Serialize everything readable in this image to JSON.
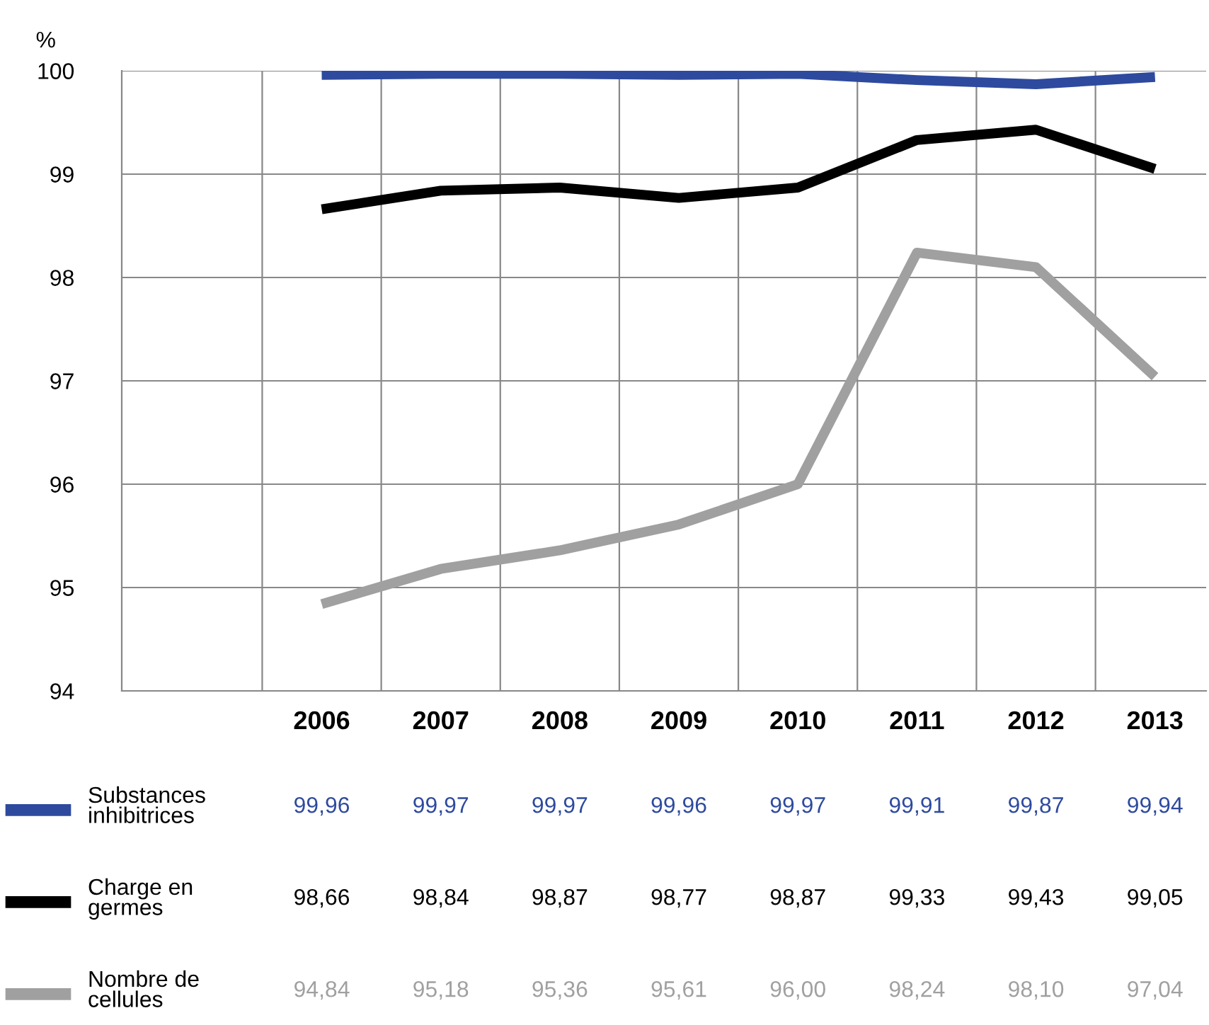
{
  "chart_data": {
    "type": "line",
    "ylabel": "%",
    "categories": [
      "2006",
      "2007",
      "2008",
      "2009",
      "2010",
      "2011",
      "2012",
      "2013"
    ],
    "series": [
      {
        "name": "Substances inhibitrices",
        "color": "#2e4a9e",
        "values": [
          99.96,
          99.97,
          99.97,
          99.96,
          99.97,
          99.91,
          99.87,
          99.94
        ],
        "value_labels": [
          "99,96",
          "99,97",
          "99,97",
          "99,96",
          "99,97",
          "99,91",
          "99,87",
          "99,94"
        ]
      },
      {
        "name": "Charge en germes",
        "color": "#000000",
        "values": [
          98.66,
          98.84,
          98.87,
          98.77,
          98.87,
          99.33,
          99.43,
          99.05
        ],
        "value_labels": [
          "98,66",
          "98,84",
          "98,87",
          "98,77",
          "98,87",
          "99,33",
          "99,43",
          "99,05"
        ]
      },
      {
        "name": "Nombre de cellules",
        "color": "#a0a0a0",
        "values": [
          94.84,
          95.18,
          95.36,
          95.61,
          96.0,
          98.24,
          98.1,
          97.04
        ],
        "value_labels": [
          "94,84",
          "95,18",
          "95,36",
          "95,61",
          "96,00",
          "98,24",
          "98,10",
          "97,04"
        ]
      }
    ],
    "ylim": [
      94,
      100
    ],
    "yticks": [
      94,
      95,
      96,
      97,
      98,
      99,
      100
    ],
    "grid": true,
    "legend": "bottom",
    "marker": "none",
    "line_style": "solid"
  }
}
